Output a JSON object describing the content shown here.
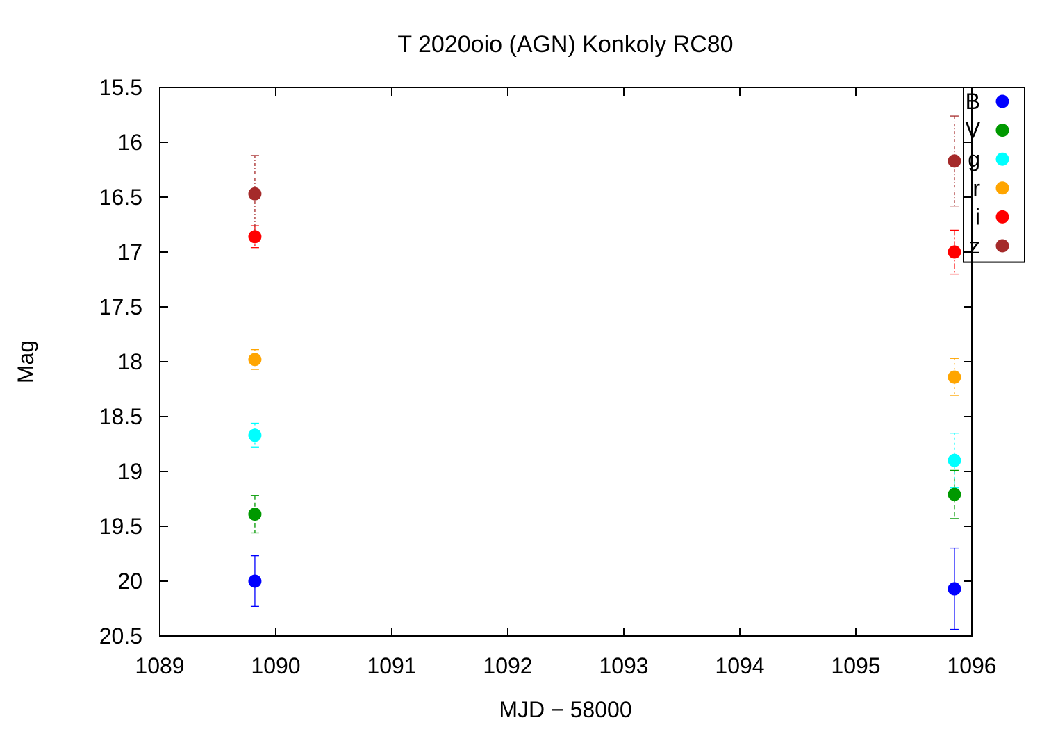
{
  "chart_data": {
    "type": "scatter",
    "title": "T 2020oio (AGN) Konkoly RC80",
    "xlabel": "MJD − 58000",
    "ylabel": "Mag",
    "xlim": [
      1089,
      1096
    ],
    "ylim": [
      15.5,
      20.5
    ],
    "y_inverted": true,
    "x_ticks": [
      "1089",
      "1090",
      "1091",
      "1092",
      "1093",
      "1094",
      "1095",
      "1096"
    ],
    "y_ticks": [
      "15.5",
      "16",
      "16.5",
      "17",
      "17.5",
      "18",
      "18.5",
      "19",
      "19.5",
      "20",
      "20.5"
    ],
    "grid": false,
    "legend_position": "top-right",
    "error_bars": true,
    "series": [
      {
        "name": "B",
        "color": "#0000ff",
        "points": [
          {
            "x": 1089.82,
            "y": 20.0,
            "err": 0.23
          },
          {
            "x": 1095.85,
            "y": 20.07,
            "err": 0.37
          }
        ]
      },
      {
        "name": "V",
        "color": "#009900",
        "points": [
          {
            "x": 1089.82,
            "y": 19.39,
            "err": 0.17
          },
          {
            "x": 1095.85,
            "y": 19.21,
            "err": 0.22
          }
        ]
      },
      {
        "name": "g",
        "color": "#00ffff",
        "points": [
          {
            "x": 1089.82,
            "y": 18.67,
            "err": 0.11
          },
          {
            "x": 1095.85,
            "y": 18.9,
            "err": 0.25
          }
        ]
      },
      {
        "name": "r",
        "color": "#ffa500",
        "points": [
          {
            "x": 1089.82,
            "y": 17.98,
            "err": 0.09
          },
          {
            "x": 1095.85,
            "y": 18.14,
            "err": 0.17
          }
        ]
      },
      {
        "name": "i",
        "color": "#ff0000",
        "points": [
          {
            "x": 1089.82,
            "y": 16.86,
            "err": 0.1
          },
          {
            "x": 1095.85,
            "y": 17.0,
            "err": 0.2
          }
        ]
      },
      {
        "name": "z",
        "color": "#a52a2a",
        "points": [
          {
            "x": 1089.82,
            "y": 16.47,
            "err": 0.35
          },
          {
            "x": 1095.85,
            "y": 16.17,
            "err": 0.41
          }
        ]
      }
    ]
  }
}
